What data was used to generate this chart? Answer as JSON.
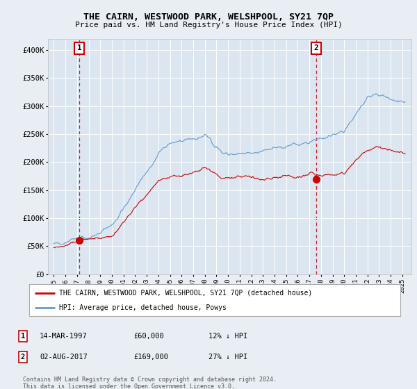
{
  "title": "THE CAIRN, WESTWOOD PARK, WELSHPOOL, SY21 7QP",
  "subtitle": "Price paid vs. HM Land Registry's House Price Index (HPI)",
  "ylim": [
    0,
    420000
  ],
  "xlim_start": 1994.5,
  "xlim_end": 2025.8,
  "sale1_x": 1997.2,
  "sale1_y": 60000,
  "sale1_label": "1",
  "sale1_date": "14-MAR-1997",
  "sale1_price": "£60,000",
  "sale1_hpi": "12% ↓ HPI",
  "sale2_x": 2017.58,
  "sale2_y": 169000,
  "sale2_label": "2",
  "sale2_date": "02-AUG-2017",
  "sale2_price": "£169,000",
  "sale2_hpi": "27% ↓ HPI",
  "legend_label_red": "THE CAIRN, WESTWOOD PARK, WELSHPOOL, SY21 7QP (detached house)",
  "legend_label_blue": "HPI: Average price, detached house, Powys",
  "footer": "Contains HM Land Registry data © Crown copyright and database right 2024.\nThis data is licensed under the Open Government Licence v3.0.",
  "background_color": "#e8eef4",
  "plot_bg_color": "#dce6f0",
  "red_color": "#cc0000",
  "blue_color": "#6699cc",
  "grid_color": "#ffffff"
}
